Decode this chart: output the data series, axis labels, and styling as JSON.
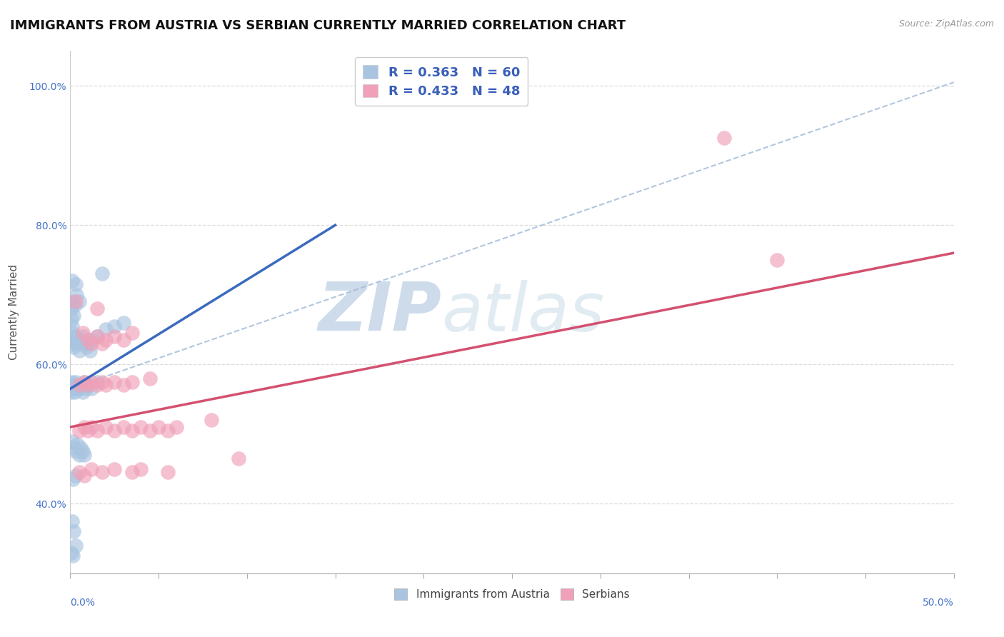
{
  "title": "IMMIGRANTS FROM AUSTRIA VS SERBIAN CURRENTLY MARRIED CORRELATION CHART",
  "source": "Source: ZipAtlas.com",
  "ylabel": "Currently Married",
  "xlim": [
    0.0,
    50.0
  ],
  "ylim": [
    30.0,
    105.0
  ],
  "ytick_values": [
    40.0,
    60.0,
    80.0,
    100.0
  ],
  "legend1_label": "R = 0.363   N = 60",
  "legend2_label": "R = 0.433   N = 48",
  "legend_bottom_label1": "Immigrants from Austria",
  "legend_bottom_label2": "Serbians",
  "blue_color": "#a8c4e0",
  "pink_color": "#f0a0b8",
  "blue_line_color": "#3a6abf",
  "pink_line_color": "#d45070",
  "diag_line_color": "#a0b8d8",
  "blue_scatter": [
    [
      0.1,
      72.0
    ],
    [
      0.15,
      69.0
    ],
    [
      0.05,
      68.0
    ],
    [
      0.08,
      66.5
    ],
    [
      0.12,
      65.5
    ],
    [
      0.2,
      67.0
    ],
    [
      0.25,
      68.5
    ],
    [
      0.3,
      71.5
    ],
    [
      0.35,
      70.0
    ],
    [
      0.5,
      69.0
    ],
    [
      1.8,
      73.0
    ],
    [
      0.1,
      64.5
    ],
    [
      0.15,
      63.0
    ],
    [
      0.2,
      62.5
    ],
    [
      0.25,
      63.5
    ],
    [
      0.3,
      64.0
    ],
    [
      0.4,
      63.0
    ],
    [
      0.5,
      62.0
    ],
    [
      0.6,
      63.5
    ],
    [
      0.7,
      64.0
    ],
    [
      0.8,
      63.0
    ],
    [
      0.9,
      62.5
    ],
    [
      1.0,
      63.0
    ],
    [
      1.1,
      62.0
    ],
    [
      1.2,
      63.5
    ],
    [
      1.5,
      64.0
    ],
    [
      2.0,
      65.0
    ],
    [
      2.5,
      65.5
    ],
    [
      3.0,
      66.0
    ],
    [
      0.05,
      56.0
    ],
    [
      0.1,
      57.5
    ],
    [
      0.15,
      56.5
    ],
    [
      0.2,
      57.0
    ],
    [
      0.25,
      56.0
    ],
    [
      0.3,
      57.5
    ],
    [
      0.35,
      56.5
    ],
    [
      0.4,
      57.0
    ],
    [
      0.5,
      56.5
    ],
    [
      0.6,
      57.0
    ],
    [
      0.7,
      56.0
    ],
    [
      0.8,
      57.5
    ],
    [
      0.9,
      56.5
    ],
    [
      1.0,
      57.0
    ],
    [
      1.2,
      56.5
    ],
    [
      1.5,
      57.5
    ],
    [
      0.1,
      49.0
    ],
    [
      0.2,
      48.0
    ],
    [
      0.3,
      47.5
    ],
    [
      0.4,
      48.5
    ],
    [
      0.5,
      47.0
    ],
    [
      0.6,
      48.0
    ],
    [
      0.7,
      47.5
    ],
    [
      0.8,
      47.0
    ],
    [
      0.15,
      43.5
    ],
    [
      0.3,
      44.0
    ],
    [
      0.1,
      37.5
    ],
    [
      0.2,
      36.0
    ],
    [
      0.05,
      33.0
    ],
    [
      0.15,
      32.5
    ],
    [
      0.3,
      34.0
    ]
  ],
  "pink_scatter": [
    [
      0.3,
      69.0
    ],
    [
      1.5,
      68.0
    ],
    [
      0.7,
      64.5
    ],
    [
      1.0,
      63.5
    ],
    [
      1.2,
      63.0
    ],
    [
      1.5,
      64.0
    ],
    [
      1.8,
      63.0
    ],
    [
      2.0,
      63.5
    ],
    [
      2.5,
      64.0
    ],
    [
      3.0,
      63.5
    ],
    [
      3.5,
      64.5
    ],
    [
      0.5,
      57.0
    ],
    [
      0.8,
      57.5
    ],
    [
      1.0,
      57.0
    ],
    [
      1.2,
      57.5
    ],
    [
      1.5,
      57.0
    ],
    [
      1.8,
      57.5
    ],
    [
      2.0,
      57.0
    ],
    [
      2.5,
      57.5
    ],
    [
      3.0,
      57.0
    ],
    [
      3.5,
      57.5
    ],
    [
      4.5,
      58.0
    ],
    [
      0.5,
      50.5
    ],
    [
      0.8,
      51.0
    ],
    [
      1.0,
      50.5
    ],
    [
      1.2,
      51.0
    ],
    [
      1.5,
      50.5
    ],
    [
      2.0,
      51.0
    ],
    [
      2.5,
      50.5
    ],
    [
      3.0,
      51.0
    ],
    [
      3.5,
      50.5
    ],
    [
      4.0,
      51.0
    ],
    [
      4.5,
      50.5
    ],
    [
      5.0,
      51.0
    ],
    [
      5.5,
      50.5
    ],
    [
      6.0,
      51.0
    ],
    [
      8.0,
      52.0
    ],
    [
      9.5,
      46.5
    ],
    [
      0.5,
      44.5
    ],
    [
      0.8,
      44.0
    ],
    [
      1.2,
      45.0
    ],
    [
      1.8,
      44.5
    ],
    [
      2.5,
      45.0
    ],
    [
      3.5,
      44.5
    ],
    [
      4.0,
      45.0
    ],
    [
      5.5,
      44.5
    ],
    [
      37.0,
      92.5
    ],
    [
      40.0,
      75.0
    ]
  ],
  "blue_trend_x": [
    0.0,
    15.0
  ],
  "blue_trend_y": [
    56.5,
    80.0
  ],
  "pink_trend_x": [
    0.0,
    50.0
  ],
  "pink_trend_y": [
    51.0,
    76.0
  ],
  "diag_line_x": [
    0.0,
    50.0
  ],
  "diag_line_y": [
    56.5,
    100.5
  ],
  "grid_color": "#d8d8d8",
  "background_color": "#ffffff",
  "watermark_zip": "ZIP",
  "watermark_atlas": "atlas",
  "title_fontsize": 13,
  "axis_label_fontsize": 11,
  "tick_fontsize": 10,
  "source_fontsize": 9
}
